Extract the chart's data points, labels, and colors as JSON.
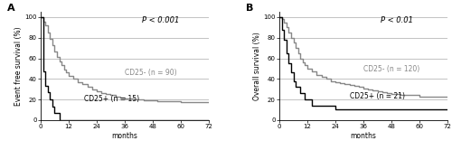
{
  "panel_A": {
    "label": "A",
    "ylabel": "Event free survival (%)",
    "xlabel": "months",
    "pvalue": "P < 0.001",
    "yticks": [
      0,
      20,
      40,
      60,
      80,
      100
    ],
    "xticks": [
      0,
      12,
      24,
      36,
      48,
      60,
      72
    ],
    "xlim": [
      0,
      72
    ],
    "ylim": [
      0,
      105
    ],
    "cd25neg_label": "CD25- (n = 90)",
    "cd25pos_label": "CD25+ (n = 15)",
    "cd25neg_color": "#888888",
    "cd25pos_color": "#000000",
    "cd25neg_x": [
      0,
      1,
      2,
      3,
      4,
      5,
      6,
      7,
      8,
      9,
      10,
      11,
      12,
      14,
      16,
      18,
      20,
      22,
      24,
      26,
      28,
      30,
      32,
      34,
      36,
      38,
      40,
      42,
      44,
      46,
      48,
      50,
      52,
      54,
      56,
      58,
      60,
      62,
      64,
      66,
      68,
      70,
      72
    ],
    "cd25neg_y": [
      100,
      96,
      92,
      85,
      79,
      73,
      67,
      61,
      57,
      53,
      49,
      46,
      43,
      40,
      37,
      35,
      32,
      30,
      28,
      26,
      25,
      24,
      23,
      22,
      21,
      21,
      20,
      20,
      19,
      19,
      19,
      18,
      18,
      18,
      18,
      18,
      17,
      17,
      17,
      17,
      17,
      17,
      17
    ],
    "cd25pos_x": [
      0,
      1,
      2,
      3,
      4,
      5,
      6,
      7,
      8,
      9,
      10,
      72
    ],
    "cd25pos_y": [
      100,
      47,
      33,
      27,
      20,
      13,
      7,
      7,
      0,
      0,
      0,
      0
    ]
  },
  "panel_B": {
    "label": "B",
    "ylabel": "Overall survival (%)",
    "xlabel": "months",
    "pvalue": "P < 0.01",
    "yticks": [
      0,
      20,
      40,
      60,
      80,
      100
    ],
    "xticks": [
      0,
      12,
      24,
      36,
      48,
      60,
      72
    ],
    "xlim": [
      0,
      72
    ],
    "ylim": [
      0,
      105
    ],
    "cd25neg_label": "CD25- (n = 120)",
    "cd25pos_label": "CD25+ (n = 21)",
    "cd25neg_color": "#888888",
    "cd25pos_color": "#000000",
    "cd25neg_x": [
      0,
      1,
      2,
      3,
      4,
      5,
      6,
      7,
      8,
      9,
      10,
      11,
      12,
      14,
      16,
      18,
      20,
      22,
      24,
      26,
      28,
      30,
      32,
      34,
      36,
      38,
      40,
      42,
      44,
      46,
      48,
      50,
      52,
      54,
      56,
      58,
      60,
      62,
      64,
      66,
      68,
      70,
      72
    ],
    "cd25neg_y": [
      100,
      98,
      95,
      90,
      85,
      80,
      75,
      70,
      65,
      60,
      56,
      53,
      50,
      47,
      44,
      42,
      40,
      38,
      37,
      36,
      35,
      34,
      33,
      32,
      31,
      30,
      29,
      28,
      27,
      26,
      25,
      25,
      24,
      24,
      24,
      24,
      23,
      23,
      23,
      23,
      23,
      23,
      23
    ],
    "cd25pos_x": [
      0,
      1,
      2,
      3,
      4,
      5,
      6,
      7,
      8,
      9,
      10,
      11,
      12,
      14,
      16,
      18,
      20,
      22,
      24,
      26,
      28,
      30,
      32,
      36,
      40,
      44,
      48,
      72
    ],
    "cd25pos_y": [
      100,
      88,
      78,
      65,
      55,
      46,
      38,
      32,
      32,
      26,
      26,
      20,
      20,
      14,
      14,
      14,
      14,
      14,
      10,
      10,
      10,
      10,
      10,
      10,
      10,
      10,
      10,
      10
    ]
  },
  "background_color": "#ffffff",
  "grid_color": "#aaaaaa",
  "grid_linestyle": "-",
  "grid_linewidth": 0.5,
  "tick_fontsize": 5,
  "label_fontsize": 5.5,
  "legend_fontsize": 5.5,
  "pvalue_fontsize": 6,
  "panel_label_fontsize": 8,
  "line_linewidth": 1.0
}
